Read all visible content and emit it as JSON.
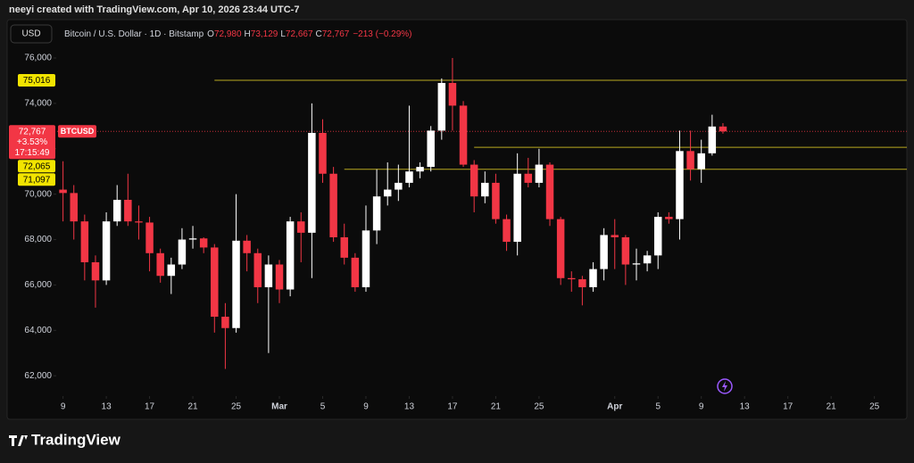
{
  "chart_data": {
    "type": "candlestick",
    "credit": "neeyi created with TradingView.com, Apr 10, 2026 23:44 UTC-7",
    "currency": "USD",
    "title": "Bitcoin / U.S. Dollar · 1D · Bitstamp",
    "ohlc_legend": [
      {
        "key": "O",
        "value": "72,980"
      },
      {
        "key": "H",
        "value": "73,129"
      },
      {
        "key": "L",
        "value": "72,667"
      },
      {
        "key": "C",
        "value": "72,767"
      }
    ],
    "change": "−213 (−0.29%)",
    "brand": "TradingView",
    "up_color": "#ffffff",
    "down_color": "#f23645",
    "x": [
      "2026-02-09",
      "2026-02-10",
      "2026-02-11",
      "2026-02-12",
      "2026-02-13",
      "2026-02-14",
      "2026-02-15",
      "2026-02-16",
      "2026-02-17",
      "2026-02-18",
      "2026-02-19",
      "2026-02-20",
      "2026-02-21",
      "2026-02-22",
      "2026-02-23",
      "2026-02-24",
      "2026-02-25",
      "2026-02-26",
      "2026-02-27",
      "2026-02-28",
      "2026-03-01",
      "2026-03-02",
      "2026-03-03",
      "2026-03-04",
      "2026-03-05",
      "2026-03-06",
      "2026-03-07",
      "2026-03-08",
      "2026-03-09",
      "2026-03-10",
      "2026-03-11",
      "2026-03-12",
      "2026-03-13",
      "2026-03-14",
      "2026-03-15",
      "2026-03-16",
      "2026-03-17",
      "2026-03-18",
      "2026-03-19",
      "2026-03-20",
      "2026-03-21",
      "2026-03-22",
      "2026-03-23",
      "2026-03-24",
      "2026-03-25",
      "2026-03-26",
      "2026-03-27",
      "2026-03-28",
      "2026-03-29",
      "2026-03-30",
      "2026-03-31",
      "2026-04-01",
      "2026-04-02",
      "2026-04-03",
      "2026-04-04",
      "2026-04-05",
      "2026-04-06",
      "2026-04-07",
      "2026-04-08",
      "2026-04-09",
      "2026-04-10",
      "2026-04-11"
    ],
    "open": [
      70200,
      70050,
      68800,
      67000,
      66200,
      68800,
      69750,
      68800,
      68750,
      67400,
      66400,
      66900,
      68000,
      68050,
      67650,
      64600,
      64100,
      67950,
      67400,
      65900,
      66900,
      65800,
      68800,
      68300,
      72700,
      70900,
      68100,
      67200,
      65900,
      68400,
      69900,
      70200,
      70500,
      71000,
      71200,
      72800,
      74900,
      73900,
      71300,
      69900,
      70500,
      68900,
      67900,
      70900,
      70500,
      71300,
      68900,
      66300,
      66250,
      65900,
      66700,
      68200,
      68100,
      66900,
      66950,
      67300,
      69000,
      68900,
      71900,
      71100,
      71800,
      72980
    ],
    "high": [
      71450,
      70400,
      69100,
      67300,
      69200,
      70400,
      70900,
      69500,
      69000,
      67600,
      67200,
      68500,
      68600,
      68100,
      67800,
      65200,
      70000,
      68200,
      67600,
      67300,
      67100,
      69000,
      69200,
      74000,
      73300,
      71200,
      68700,
      67400,
      69500,
      71100,
      71400,
      71300,
      73900,
      71400,
      73000,
      75100,
      76000,
      74100,
      71500,
      71000,
      70900,
      69100,
      71800,
      71600,
      72000,
      71400,
      69000,
      66600,
      66400,
      67000,
      68500,
      68900,
      68200,
      67600,
      67500,
      69200,
      69200,
      72800,
      72800,
      72400,
      73500,
      73129
    ],
    "low": [
      68800,
      68000,
      66200,
      65000,
      66000,
      68600,
      68600,
      68000,
      66600,
      66100,
      65600,
      66700,
      67600,
      67400,
      63900,
      62300,
      63900,
      66600,
      65200,
      63000,
      65200,
      65500,
      67000,
      66300,
      70500,
      67900,
      66900,
      65700,
      65700,
      67800,
      69500,
      69700,
      70300,
      70700,
      71000,
      72400,
      72800,
      71200,
      69200,
      69600,
      68700,
      67500,
      67300,
      70300,
      70300,
      68600,
      66000,
      65700,
      65100,
      65700,
      66200,
      66700,
      66000,
      66200,
      66600,
      66700,
      68700,
      68000,
      70600,
      70500,
      71700,
      72667
    ],
    "close": [
      70050,
      68800,
      67000,
      66200,
      68800,
      69750,
      68800,
      68750,
      67400,
      66400,
      66900,
      68000,
      68050,
      67650,
      64600,
      64100,
      67950,
      67400,
      65900,
      66900,
      65800,
      68800,
      68300,
      72700,
      70900,
      68100,
      67200,
      65900,
      68400,
      69900,
      70200,
      70500,
      71000,
      71200,
      72800,
      74900,
      73900,
      71300,
      69900,
      70500,
      68900,
      67900,
      70900,
      70500,
      71300,
      68900,
      66300,
      66250,
      65900,
      66700,
      68200,
      68100,
      66900,
      66950,
      67300,
      69000,
      68900,
      71900,
      71100,
      71800,
      72980,
      72767
    ],
    "xlim": [
      "2026-02-04",
      "2026-04-28"
    ],
    "xticks": [
      {
        "value": "2026-02-09",
        "label": "9"
      },
      {
        "value": "2026-02-13",
        "label": "13"
      },
      {
        "value": "2026-02-17",
        "label": "17"
      },
      {
        "value": "2026-02-21",
        "label": "21"
      },
      {
        "value": "2026-02-25",
        "label": "25"
      },
      {
        "value": "2026-03-01",
        "label": "Mar"
      },
      {
        "value": "2026-03-05",
        "label": "5"
      },
      {
        "value": "2026-03-09",
        "label": "9"
      },
      {
        "value": "2026-03-13",
        "label": "13"
      },
      {
        "value": "2026-03-17",
        "label": "17"
      },
      {
        "value": "2026-03-21",
        "label": "21"
      },
      {
        "value": "2026-03-25",
        "label": "25"
      },
      {
        "value": "2026-04-01",
        "label": "Apr"
      },
      {
        "value": "2026-04-05",
        "label": "5"
      },
      {
        "value": "2026-04-09",
        "label": "9"
      },
      {
        "value": "2026-04-13",
        "label": "13"
      },
      {
        "value": "2026-04-17",
        "label": "17"
      },
      {
        "value": "2026-04-21",
        "label": "21"
      },
      {
        "value": "2026-04-25",
        "label": "25"
      }
    ],
    "ylim": [
      61260,
      77690
    ],
    "yticks": [
      {
        "value": 62000,
        "label": "62,000"
      },
      {
        "value": 64000,
        "label": "64,000"
      },
      {
        "value": 66000,
        "label": "66,000"
      },
      {
        "value": 68000,
        "label": "68,000"
      },
      {
        "value": 70000,
        "label": "70,000"
      },
      {
        "value": 72000,
        "label": "72,000"
      },
      {
        "value": 74000,
        "label": "74,000"
      },
      {
        "value": 76000,
        "label": "76,000"
      }
    ],
    "levels": [
      {
        "value": 75016,
        "label": "75,016",
        "start": "2026-02-23",
        "color": "#b8a820"
      },
      {
        "value": 72065,
        "label": "72,065",
        "start": "2026-03-19",
        "color": "#b8a820"
      },
      {
        "value": 71097,
        "label": "71,097",
        "start": "2026-03-07",
        "color": "#b8a820"
      }
    ],
    "price_tag": {
      "value": 72767,
      "label": "72,767",
      "change": "+3.53%",
      "countdown": "17:15:49",
      "symbol": "BTCUSD",
      "color": "#f23645"
    }
  }
}
